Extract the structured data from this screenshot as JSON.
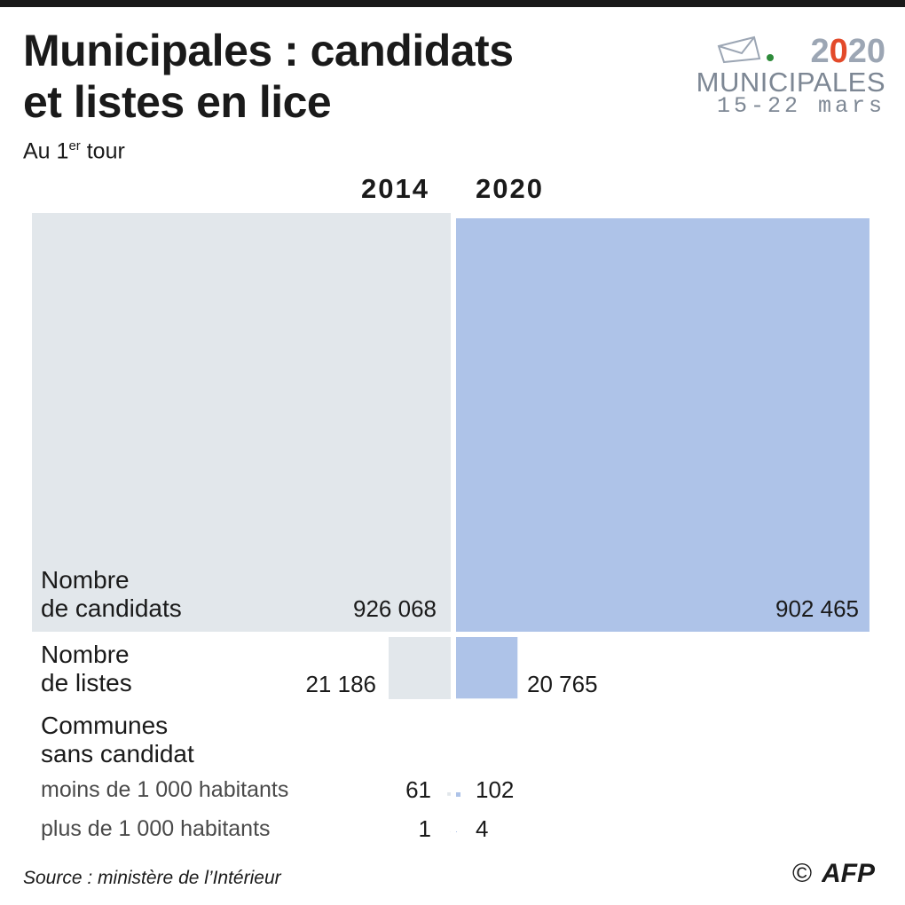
{
  "header": {
    "title_line1": "Municipales : candidats",
    "title_line2": "et listes en lice",
    "subtitle_prefix": "Au 1",
    "subtitle_sup": "er",
    "subtitle_suffix": " tour"
  },
  "logo": {
    "year_prefix": "2",
    "year_zero": "0",
    "year_suffix": "20",
    "word": "MUNICIPALES",
    "dates": "15-22 mars",
    "colors": {
      "gray": "#9ca6b4",
      "accent": "#e34a2a",
      "dot": "#2e8b3a"
    }
  },
  "chart_data": {
    "type": "area",
    "years": [
      "2014",
      "2020"
    ],
    "colors": {
      "2014": "#e2e7eb",
      "2020": "#aec3e8"
    },
    "metrics": [
      {
        "label_line1": "Nombre",
        "label_line2": "de candidats",
        "values": [
          926068
        ],
        "display": [
          "926 068",
          "902 465"
        ],
        "values_2020": [
          902465
        ]
      },
      {
        "label_line1": "Nombre",
        "label_line2": "de listes",
        "values": [
          21186
        ],
        "display": [
          "21 186",
          "20 765"
        ],
        "values_2020": [
          20765
        ]
      }
    ],
    "communes": {
      "label_line1": "Communes",
      "label_line2": "sans candidat",
      "rows": [
        {
          "label": "moins de 1 000 habitants",
          "values": [
            61,
            102
          ],
          "display": [
            "61",
            "102"
          ]
        },
        {
          "label": "plus de 1 000 habitants",
          "values": [
            1,
            4
          ],
          "display": [
            "1",
            "4"
          ]
        }
      ]
    }
  },
  "footer": {
    "source": "Source : ministère de l’Intérieur",
    "copyright": "©",
    "brand": "AFP"
  }
}
